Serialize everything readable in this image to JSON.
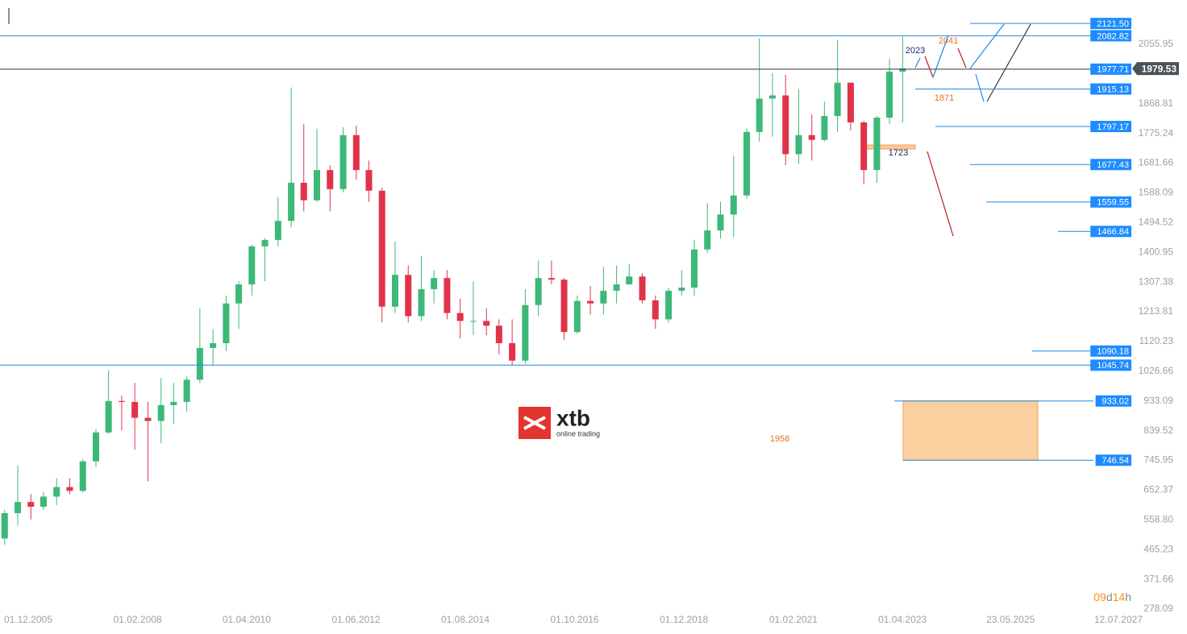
{
  "chart_data": {
    "type": "candlestick",
    "up_color": "#3cb878",
    "down_color": "#e0334a",
    "level_color": "#1e88e5",
    "xlim": [
      2005.358,
      2027.896
    ],
    "ylim": [
      267.9,
      2195.4
    ],
    "xticks": [
      {
        "value": 2005.917,
        "label": "01.12.2005"
      },
      {
        "value": 2008.085,
        "label": "01.02.2008"
      },
      {
        "value": 2010.247,
        "label": "01.04.2010"
      },
      {
        "value": 2012.415,
        "label": "01.06.2012"
      },
      {
        "value": 2014.581,
        "label": "01.08.2014"
      },
      {
        "value": 2016.748,
        "label": "01.10.2016"
      },
      {
        "value": 2018.915,
        "label": "01.12.2018"
      },
      {
        "value": 2021.085,
        "label": "01.02.2021"
      },
      {
        "value": 2023.247,
        "label": "01.04.2023"
      },
      {
        "value": 2025.389,
        "label": "23.05.2025"
      },
      {
        "value": 2027.528,
        "label": "12.07.2027"
      }
    ],
    "yticks": [
      2055.95,
      1868.81,
      1775.24,
      1681.66,
      1588.09,
      1494.52,
      1400.95,
      1307.38,
      1213.81,
      1120.23,
      1026.66,
      933.09,
      839.52,
      745.95,
      652.37,
      {
        "value": 558.8,
        "label": "558.80"
      },
      465.23,
      371.66,
      278.09
    ],
    "x": [
      2005.45,
      2005.71,
      2005.97,
      2006.22,
      2006.48,
      2006.74,
      2007.0,
      2007.26,
      2007.51,
      2007.77,
      2008.03,
      2008.29,
      2008.55,
      2008.8,
      2009.06,
      2009.32,
      2009.58,
      2009.84,
      2010.09,
      2010.35,
      2010.61,
      2010.87,
      2011.13,
      2011.38,
      2011.64,
      2011.9,
      2012.16,
      2012.42,
      2012.67,
      2012.93,
      2013.19,
      2013.45,
      2013.71,
      2013.96,
      2014.22,
      2014.48,
      2014.74,
      2015.0,
      2015.25,
      2015.51,
      2015.77,
      2016.03,
      2016.29,
      2016.54,
      2016.8,
      2017.06,
      2017.32,
      2017.58,
      2017.83,
      2018.09,
      2018.35,
      2018.61,
      2018.87,
      2019.12,
      2019.38,
      2019.64,
      2019.9,
      2020.16,
      2020.41,
      2020.67,
      2020.93,
      2021.19,
      2021.45,
      2021.7,
      2021.96,
      2022.22,
      2022.48,
      2022.74,
      2022.99,
      2023.25
    ],
    "open": [
      500,
      580,
      615,
      600,
      632,
      662,
      650,
      743,
      834,
      933,
      930,
      880,
      870,
      920,
      930,
      1000,
      1100,
      1115,
      1240,
      1300,
      1420,
      1440,
      1500,
      1620,
      1565,
      1660,
      1600,
      1770,
      1660,
      1595,
      1230,
      1330,
      1200,
      1285,
      1320,
      1210,
      1185,
      1185,
      1170,
      1115,
      1060,
      1235,
      1320,
      1315,
      1150,
      1248,
      1240,
      1280,
      1300,
      1325,
      1250,
      1190,
      1280,
      1290,
      1410,
      1470,
      1520,
      1580,
      1780,
      1885,
      1895,
      1710,
      1770,
      1755,
      1830,
      1935,
      1810,
      1660,
      1825,
      1970
    ],
    "high": [
      590,
      730,
      640,
      645,
      690,
      690,
      750,
      845,
      1030,
      950,
      990,
      930,
      1005,
      990,
      1010,
      1225,
      1160,
      1265,
      1310,
      1425,
      1445,
      1575,
      1920,
      1805,
      1790,
      1675,
      1795,
      1800,
      1690,
      1605,
      1435,
      1360,
      1390,
      1345,
      1345,
      1255,
      1310,
      1225,
      1190,
      1190,
      1285,
      1375,
      1375,
      1320,
      1265,
      1295,
      1355,
      1360,
      1365,
      1335,
      1265,
      1290,
      1345,
      1440,
      1555,
      1560,
      1705,
      1790,
      2075,
      1965,
      1960,
      1915,
      1835,
      1875,
      2070,
      1935,
      1815,
      1830,
      2010,
      2080
    ],
    "low": [
      480,
      540,
      560,
      590,
      605,
      640,
      645,
      725,
      830,
      840,
      780,
      680,
      800,
      860,
      900,
      990,
      1045,
      1090,
      1160,
      1265,
      1310,
      1420,
      1480,
      1530,
      1560,
      1530,
      1590,
      1630,
      1560,
      1180,
      1210,
      1180,
      1185,
      1240,
      1190,
      1130,
      1140,
      1140,
      1080,
      1045,
      1050,
      1200,
      1300,
      1125,
      1145,
      1205,
      1205,
      1240,
      1300,
      1240,
      1160,
      1180,
      1265,
      1265,
      1400,
      1445,
      1450,
      1570,
      1750,
      1765,
      1675,
      1680,
      1690,
      1750,
      1780,
      1785,
      1615,
      1620,
      1805,
      1810
    ],
    "close": [
      580,
      615,
      600,
      632,
      662,
      650,
      743,
      834,
      933,
      930,
      880,
      870,
      920,
      930,
      1000,
      1100,
      1115,
      1240,
      1300,
      1420,
      1440,
      1500,
      1620,
      1565,
      1660,
      1600,
      1770,
      1660,
      1595,
      1230,
      1330,
      1200,
      1285,
      1320,
      1210,
      1185,
      1185,
      1170,
      1115,
      1060,
      1235,
      1320,
      1315,
      1150,
      1248,
      1240,
      1280,
      1300,
      1325,
      1250,
      1190,
      1280,
      1290,
      1410,
      1470,
      1520,
      1580,
      1780,
      1885,
      1895,
      1710,
      1770,
      1755,
      1830,
      1935,
      1810,
      1660,
      1825,
      1970,
      1980
    ],
    "levels": [
      {
        "value": 2121.5,
        "label": "2121.50"
      },
      {
        "value": 2082.82,
        "label": "2082.82"
      },
      {
        "value": 1977.71,
        "label": "1977.71"
      },
      {
        "value": 1915.13,
        "label": "1915.13"
      },
      {
        "value": 1797.17,
        "label": "1797.17"
      },
      {
        "value": 1677.43,
        "label": "1677.43"
      },
      {
        "value": 1559.55,
        "label": "1559.55"
      },
      {
        "value": 1466.84,
        "label": "1466.84"
      },
      {
        "value": 1090.18,
        "label": "1090.18"
      },
      {
        "value": 1045.74,
        "label": "1045.74"
      },
      {
        "value": 933.02,
        "label": "933.02"
      },
      {
        "value": 746.54,
        "label": "746.54"
      }
    ],
    "current_price": 1979.53,
    "annotations": [
      {
        "text": "2023",
        "color": "#1a2a6c"
      },
      {
        "text": "2041",
        "color": "#e8731a"
      },
      {
        "text": "1871",
        "color": "#e8731a"
      },
      {
        "text": "1723",
        "color": "#1a2a6c"
      },
      {
        "text": "1958",
        "color": "#e8731a"
      }
    ],
    "countdown": [
      "09",
      "d",
      "14",
      "h"
    ],
    "logo": {
      "name": "xtb",
      "tagline": "online trading"
    }
  }
}
